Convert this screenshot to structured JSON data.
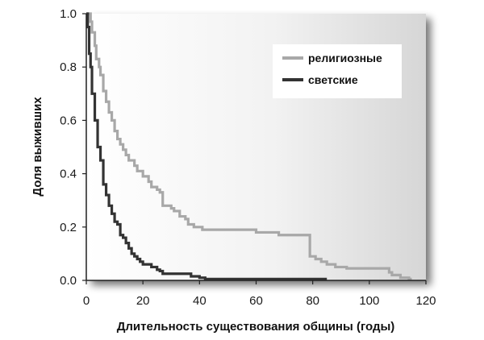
{
  "chart_data": {
    "type": "line",
    "step": true,
    "xlabel": "Длительность существования общины (годы)",
    "ylabel": "Доля выживших",
    "xlim": [
      0,
      120
    ],
    "ylim": [
      0,
      1.0
    ],
    "x_ticks": [
      0,
      20,
      40,
      60,
      80,
      100,
      120
    ],
    "y_ticks": [
      "0.0",
      "0.2",
      "0.4",
      "0.6",
      "0.8",
      "1.0"
    ],
    "grid": false,
    "legend_position": "top-right",
    "series": [
      {
        "name": "религиозные",
        "color": "#a8a8a8",
        "points": [
          [
            0,
            1.0
          ],
          [
            1,
            1.0
          ],
          [
            1.5,
            0.97
          ],
          [
            2,
            0.93
          ],
          [
            3,
            0.88
          ],
          [
            3.5,
            0.83
          ],
          [
            4.5,
            0.8
          ],
          [
            5,
            0.77
          ],
          [
            6,
            0.71
          ],
          [
            7,
            0.67
          ],
          [
            8,
            0.63
          ],
          [
            9,
            0.6
          ],
          [
            10,
            0.56
          ],
          [
            11,
            0.53
          ],
          [
            12,
            0.51
          ],
          [
            13,
            0.49
          ],
          [
            14,
            0.47
          ],
          [
            15,
            0.45
          ],
          [
            17,
            0.43
          ],
          [
            18,
            0.41
          ],
          [
            20,
            0.39
          ],
          [
            22,
            0.37
          ],
          [
            23,
            0.35
          ],
          [
            25,
            0.34
          ],
          [
            26,
            0.33
          ],
          [
            27,
            0.28
          ],
          [
            30,
            0.27
          ],
          [
            31,
            0.26
          ],
          [
            33,
            0.24
          ],
          [
            35,
            0.23
          ],
          [
            36,
            0.21
          ],
          [
            38,
            0.2
          ],
          [
            40,
            0.2
          ],
          [
            41,
            0.19
          ],
          [
            59,
            0.19
          ],
          [
            60,
            0.18
          ],
          [
            67,
            0.18
          ],
          [
            68,
            0.17
          ],
          [
            78,
            0.17
          ],
          [
            79,
            0.09
          ],
          [
            81,
            0.08
          ],
          [
            83,
            0.07
          ],
          [
            85,
            0.06
          ],
          [
            88,
            0.05
          ],
          [
            90,
            0.05
          ],
          [
            92,
            0.045
          ],
          [
            106,
            0.045
          ],
          [
            107,
            0.03
          ],
          [
            108,
            0.02
          ],
          [
            111,
            0.01
          ],
          [
            114,
            0.005
          ],
          [
            115,
            0.005
          ]
        ]
      },
      {
        "name": "светские",
        "color": "#333333",
        "points": [
          [
            0,
            1.0
          ],
          [
            0.5,
            0.95
          ],
          [
            1,
            0.85
          ],
          [
            1.5,
            0.8
          ],
          [
            2,
            0.7
          ],
          [
            3,
            0.6
          ],
          [
            4,
            0.5
          ],
          [
            5,
            0.45
          ],
          [
            6,
            0.36
          ],
          [
            7,
            0.32
          ],
          [
            8,
            0.28
          ],
          [
            9,
            0.25
          ],
          [
            10,
            0.22
          ],
          [
            11,
            0.21
          ],
          [
            12,
            0.17
          ],
          [
            13,
            0.16
          ],
          [
            14,
            0.14
          ],
          [
            15,
            0.12
          ],
          [
            16,
            0.1
          ],
          [
            17,
            0.09
          ],
          [
            18,
            0.08
          ],
          [
            19,
            0.07
          ],
          [
            20,
            0.06
          ],
          [
            22,
            0.06
          ],
          [
            23,
            0.05
          ],
          [
            25,
            0.04
          ],
          [
            26,
            0.035
          ],
          [
            27,
            0.025
          ],
          [
            36,
            0.025
          ],
          [
            37,
            0.015
          ],
          [
            40,
            0.01
          ],
          [
            42,
            0.005
          ],
          [
            85,
            0.005
          ]
        ]
      }
    ]
  }
}
